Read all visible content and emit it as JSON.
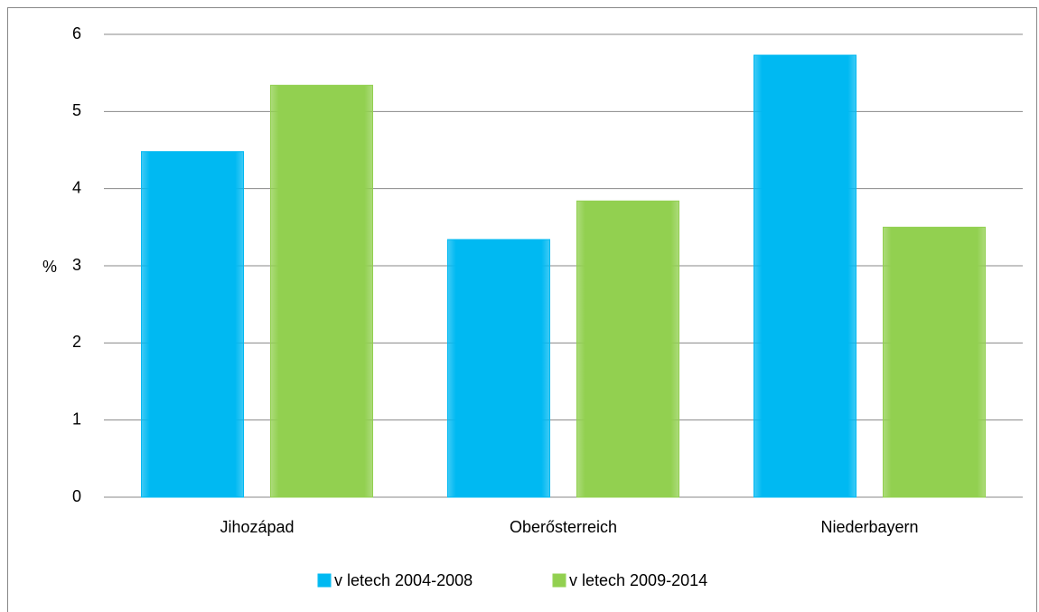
{
  "chart_data": {
    "type": "bar",
    "y_label": "%",
    "categories": [
      "Jihozápad",
      "Oberősterreich",
      "Niederbayern"
    ],
    "series": [
      {
        "name": "v letech 2004-2008",
        "color": "#00b9f2",
        "values": [
          4.48,
          3.34,
          5.73
        ]
      },
      {
        "name": "v letech 2009-2014",
        "color": "#92d050",
        "values": [
          5.34,
          3.84,
          3.5
        ]
      }
    ],
    "ylim": [
      0,
      6
    ],
    "yticks": [
      0,
      1,
      2,
      3,
      4,
      5,
      6
    ],
    "grid": true,
    "legend": "bottom"
  }
}
